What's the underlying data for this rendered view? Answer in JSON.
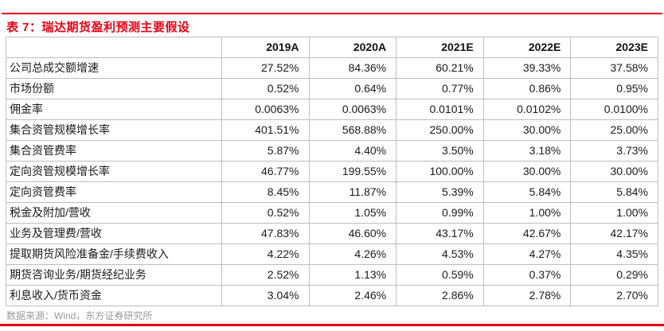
{
  "page": {
    "title": "表 7：瑞达期货盈利预测主要假设",
    "source_note": "数据来源：Wind，东方证券研究所",
    "colors": {
      "accent_red": "#e60012",
      "source_gray": "#999999",
      "table_border_gray": "#bdbdbd"
    }
  },
  "chart_data": {
    "type": "table",
    "title": "表 7：瑞达期货盈利预测主要假设",
    "columns": [
      "2019A",
      "2020A",
      "2021E",
      "2022E",
      "2023E"
    ],
    "rows": [
      {
        "label": "公司总成交额增速",
        "values": [
          "27.52%",
          "84.36%",
          "60.21%",
          "39.33%",
          "37.58%"
        ]
      },
      {
        "label": "市场份额",
        "values": [
          "0.52%",
          "0.64%",
          "0.77%",
          "0.86%",
          "0.95%"
        ]
      },
      {
        "label": "佣金率",
        "values": [
          "0.0063%",
          "0.0063%",
          "0.0101%",
          "0.0102%",
          "0.0100%"
        ]
      },
      {
        "label": "集合资管规模增长率",
        "values": [
          "401.51%",
          "568.88%",
          "250.00%",
          "30.00%",
          "25.00%"
        ]
      },
      {
        "label": "集合资管费率",
        "values": [
          "5.87%",
          "4.40%",
          "3.50%",
          "3.18%",
          "3.73%"
        ]
      },
      {
        "label": "定向资管规模增长率",
        "values": [
          "46.77%",
          "199.55%",
          "100.00%",
          "30.00%",
          "30.00%"
        ]
      },
      {
        "label": "定向资管费率",
        "values": [
          "8.45%",
          "11.87%",
          "5.39%",
          "5.84%",
          "5.84%"
        ]
      },
      {
        "label": "税金及附加/营收",
        "values": [
          "0.52%",
          "1.05%",
          "0.99%",
          "1.00%",
          "1.00%"
        ]
      },
      {
        "label": "业务及管理费/营收",
        "values": [
          "47.83%",
          "46.60%",
          "43.17%",
          "42.67%",
          "42.17%"
        ]
      },
      {
        "label": "提取期货风险准备金/手续费收入",
        "values": [
          "4.22%",
          "4.26%",
          "4.53%",
          "4.27%",
          "4.35%"
        ]
      },
      {
        "label": "期货咨询业务/期货经纪业务",
        "values": [
          "2.52%",
          "1.13%",
          "0.59%",
          "0.37%",
          "0.29%"
        ]
      },
      {
        "label": "利息收入/货币资金",
        "values": [
          "3.04%",
          "2.46%",
          "2.86%",
          "2.78%",
          "2.70%"
        ]
      }
    ]
  }
}
